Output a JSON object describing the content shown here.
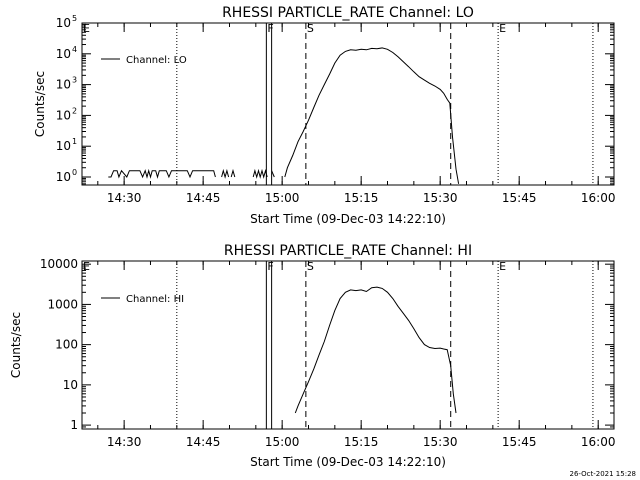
{
  "footer": {
    "timestamp": "26-Oct-2021 15:28"
  },
  "chart_data": [
    {
      "type": "line",
      "title": "RHESSI PARTICLE_RATE Channel: LO",
      "xlabel": "Start Time (09-Dec-03 14:22:10)",
      "ylabel": "Counts/sec",
      "scale": "log",
      "xlim": [
        "14:22:00",
        "16:03:00"
      ],
      "ylim": [
        0.55,
        100000
      ],
      "xticks": [
        "14:30",
        "14:45",
        "15:00",
        "15:15",
        "15:30",
        "15:45",
        "16:00"
      ],
      "yticks": [
        {
          "value": 1,
          "base": "10",
          "exp": "0"
        },
        {
          "value": 10,
          "base": "10",
          "exp": "1"
        },
        {
          "value": 100,
          "base": "10",
          "exp": "2"
        },
        {
          "value": 1000,
          "base": "10",
          "exp": "3"
        },
        {
          "value": 10000,
          "base": "10",
          "exp": "4"
        },
        {
          "value": 100000,
          "base": "10",
          "exp": "5"
        }
      ],
      "legend": "top-left",
      "series": [
        {
          "name": "Channel: LO",
          "segments": [
            [
              [
                "14:27:00",
                1
              ],
              [
                "14:27:30",
                1
              ],
              [
                "14:28:00",
                1.6
              ],
              [
                "14:28:40",
                1.6
              ],
              [
                "14:29:00",
                1
              ],
              [
                "14:29:30",
                1.6
              ],
              [
                "14:30:30",
                1
              ],
              [
                "14:31:00",
                1.6
              ],
              [
                "14:33:00",
                1.6
              ],
              [
                "14:33:30",
                1
              ],
              [
                "14:34:00",
                1.6
              ],
              [
                "14:34:20",
                1
              ],
              [
                "14:34:40",
                1.6
              ],
              [
                "14:35:00",
                1
              ],
              [
                "14:35:20",
                1.6
              ],
              [
                "14:36:00",
                1.6
              ],
              [
                "14:36:20",
                1
              ],
              [
                "14:36:40",
                1.6
              ],
              [
                "14:38:00",
                1.6
              ],
              [
                "14:38:30",
                1
              ],
              [
                "14:39:00",
                1.6
              ],
              [
                "14:42:00",
                1.6
              ],
              [
                "14:42:30",
                1
              ],
              [
                "14:43:00",
                1.6
              ],
              [
                "14:47:00",
                1.6
              ],
              [
                "14:47:20",
                1
              ]
            ],
            [
              [
                "14:48:30",
                1
              ],
              [
                "14:48:50",
                1.6
              ],
              [
                "14:49:10",
                1
              ],
              [
                "14:49:30",
                1.6
              ],
              [
                "14:49:50",
                1
              ]
            ],
            [
              [
                "14:50:20",
                1
              ],
              [
                "14:50:40",
                1.6
              ],
              [
                "14:51:00",
                1
              ]
            ],
            [
              [
                "14:54:30",
                1
              ],
              [
                "14:54:50",
                1.6
              ],
              [
                "14:55:10",
                1
              ],
              [
                "14:55:30",
                1.6
              ],
              [
                "14:55:50",
                1
              ],
              [
                "14:56:10",
                1.6
              ],
              [
                "14:56:30",
                1
              ],
              [
                "14:56:50",
                1.6
              ],
              [
                "14:57:10",
                1
              ]
            ],
            [
              [
                "14:58:00",
                1.6
              ],
              [
                "14:58:30",
                1
              ]
            ],
            [
              [
                "15:00:30",
                1
              ],
              [
                "15:01:00",
                2
              ],
              [
                "15:02:00",
                5
              ],
              [
                "15:03:00",
                14
              ],
              [
                "15:04:00",
                30
              ],
              [
                "15:05:00",
                70
              ],
              [
                "15:06:00",
                180
              ],
              [
                "15:07:00",
                450
              ],
              [
                "15:08:00",
                1000
              ],
              [
                "15:09:00",
                2200
              ],
              [
                "15:10:00",
                5000
              ],
              [
                "15:11:00",
                9000
              ],
              [
                "15:12:00",
                12000
              ],
              [
                "15:13:00",
                13500
              ],
              [
                "15:14:00",
                13000
              ],
              [
                "15:15:00",
                14000
              ],
              [
                "15:16:00",
                13500
              ],
              [
                "15:17:00",
                15000
              ],
              [
                "15:18:00",
                14500
              ],
              [
                "15:19:00",
                15500
              ],
              [
                "15:20:00",
                14000
              ],
              [
                "15:21:00",
                11000
              ],
              [
                "15:22:00",
                8000
              ],
              [
                "15:23:00",
                5500
              ],
              [
                "15:24:00",
                3800
              ],
              [
                "15:25:00",
                2600
              ],
              [
                "15:26:00",
                1800
              ],
              [
                "15:27:00",
                1400
              ],
              [
                "15:28:00",
                1100
              ],
              [
                "15:29:00",
                900
              ],
              [
                "15:30:00",
                700
              ],
              [
                "15:30:40",
                520
              ],
              [
                "15:31:20",
                330
              ],
              [
                "15:31:50",
                250
              ],
              [
                "15:32:20",
                20
              ],
              [
                "15:33:00",
                1.8
              ],
              [
                "15:33:30",
                0.6
              ]
            ]
          ]
        }
      ],
      "markers": {
        "F": [
          "14:57:00",
          "14:58:00"
        ],
        "S": "15:04:30",
        "end_dashed": "15:32:00",
        "E": "15:41:00",
        "dotted": [
          "14:40:00",
          "15:41:00",
          "15:59:00"
        ]
      }
    },
    {
      "type": "line",
      "title": "RHESSI PARTICLE_RATE Channel: HI",
      "xlabel": "Start Time (09-Dec-03 14:22:10)",
      "ylabel": "Counts/sec",
      "scale": "log",
      "xlim": [
        "14:22:00",
        "16:03:00"
      ],
      "ylim": [
        0.8,
        12000
      ],
      "xticks": [
        "14:30",
        "14:45",
        "15:00",
        "15:15",
        "15:30",
        "15:45",
        "16:00"
      ],
      "yticks": [
        {
          "value": 1,
          "label": "1"
        },
        {
          "value": 10,
          "label": "10"
        },
        {
          "value": 100,
          "label": "100"
        },
        {
          "value": 1000,
          "label": "1000"
        },
        {
          "value": 10000,
          "label": "10000"
        }
      ],
      "legend": "top-left",
      "series": [
        {
          "name": "Channel: HI",
          "segments": [
            [
              [
                "15:02:30",
                2
              ],
              [
                "15:03:00",
                3
              ],
              [
                "15:04:00",
                6
              ],
              [
                "15:05:00",
                12
              ],
              [
                "15:06:00",
                25
              ],
              [
                "15:07:00",
                55
              ],
              [
                "15:08:00",
                120
              ],
              [
                "15:09:00",
                300
              ],
              [
                "15:10:00",
                700
              ],
              [
                "15:11:00",
                1400
              ],
              [
                "15:12:00",
                2000
              ],
              [
                "15:13:00",
                2300
              ],
              [
                "15:14:00",
                2200
              ],
              [
                "15:15:00",
                2300
              ],
              [
                "15:16:00",
                2100
              ],
              [
                "15:17:00",
                2600
              ],
              [
                "15:18:00",
                2700
              ],
              [
                "15:19:00",
                2500
              ],
              [
                "15:20:00",
                2000
              ],
              [
                "15:21:00",
                1400
              ],
              [
                "15:22:00",
                900
              ],
              [
                "15:23:00",
                600
              ],
              [
                "15:24:00",
                400
              ],
              [
                "15:25:00",
                250
              ],
              [
                "15:26:00",
                150
              ],
              [
                "15:27:00",
                100
              ],
              [
                "15:28:00",
                85
              ],
              [
                "15:29:00",
                80
              ],
              [
                "15:30:00",
                82
              ],
              [
                "15:30:40",
                78
              ],
              [
                "15:31:20",
                75
              ],
              [
                "15:32:00",
                30
              ],
              [
                "15:32:30",
                6
              ],
              [
                "15:33:00",
                2
              ]
            ]
          ]
        }
      ],
      "markers": {
        "F": [
          "14:57:00",
          "14:58:00"
        ],
        "S": "15:04:30",
        "end_dashed": "15:32:00",
        "E": "15:41:00",
        "dotted": [
          "14:40:00",
          "15:41:00",
          "15:59:00"
        ]
      }
    }
  ]
}
